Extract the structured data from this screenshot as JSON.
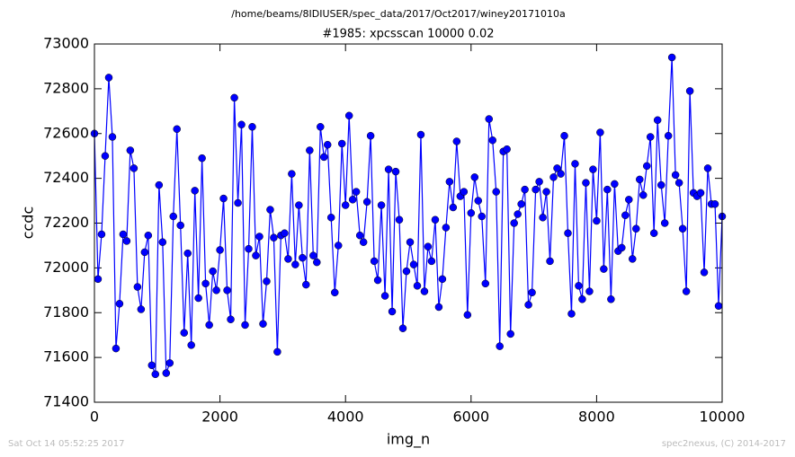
{
  "chart_data": {
    "type": "line",
    "suptitle": "/home/beams/8IDIUSER/spec_data/2017/Oct2017/winey20171010a",
    "title": "#1985: xpcsscan 10000 0.02",
    "x_label": "img_n",
    "y_label": "ccdc",
    "footer_left": "Sat Oct 14 05:52:25 2017",
    "footer_right": "spec2nexus, (C) 2014-2017",
    "xlim": [
      0,
      10000
    ],
    "xticks": [
      0,
      2000,
      4000,
      6000,
      8000,
      10000
    ],
    "ylim": [
      71400,
      73000
    ],
    "yticks": [
      71400,
      71600,
      71800,
      72000,
      72200,
      72400,
      72600,
      72800,
      73000
    ],
    "grid": false,
    "x": [
      0,
      57,
      114,
      171,
      229,
      286,
      343,
      400,
      457,
      514,
      571,
      629,
      686,
      743,
      800,
      857,
      914,
      971,
      1029,
      1086,
      1143,
      1200,
      1257,
      1314,
      1371,
      1429,
      1486,
      1543,
      1600,
      1657,
      1714,
      1771,
      1829,
      1886,
      1943,
      2000,
      2057,
      2114,
      2171,
      2229,
      2286,
      2343,
      2400,
      2457,
      2514,
      2571,
      2629,
      2686,
      2743,
      2800,
      2857,
      2914,
      2971,
      3029,
      3086,
      3143,
      3200,
      3257,
      3314,
      3371,
      3429,
      3486,
      3543,
      3600,
      3657,
      3714,
      3771,
      3829,
      3886,
      3943,
      4000,
      4057,
      4114,
      4171,
      4229,
      4286,
      4343,
      4400,
      4457,
      4514,
      4571,
      4629,
      4686,
      4743,
      4800,
      4857,
      4914,
      4971,
      5029,
      5086,
      5143,
      5200,
      5257,
      5314,
      5371,
      5429,
      5486,
      5543,
      5600,
      5657,
      5714,
      5771,
      5829,
      5886,
      5943,
      6000,
      6057,
      6114,
      6171,
      6229,
      6286,
      6343,
      6400,
      6457,
      6514,
      6571,
      6629,
      6686,
      6743,
      6800,
      6857,
      6914,
      6971,
      7029,
      7086,
      7143,
      7200,
      7257,
      7314,
      7371,
      7429,
      7486,
      7543,
      7600,
      7657,
      7714,
      7771,
      7829,
      7886,
      7943,
      8000,
      8057,
      8114,
      8171,
      8229,
      8286,
      8343,
      8400,
      8457,
      8514,
      8571,
      8629,
      8686,
      8743,
      8800,
      8857,
      8914,
      8971,
      9029,
      9086,
      9143,
      9200,
      9257,
      9314,
      9371,
      9429,
      9486,
      9543,
      9600,
      9657,
      9714,
      9771,
      9829,
      9886,
      9943,
      10000
    ],
    "series": [
      {
        "name": "ccdc",
        "color": "#0000ff",
        "values": [
          72600,
          71950,
          72150,
          72500,
          72850,
          72585,
          71640,
          71840,
          72150,
          72120,
          72525,
          72445,
          71915,
          71815,
          72070,
          72145,
          71565,
          71525,
          72370,
          72115,
          71530,
          71575,
          72230,
          72620,
          72190,
          71710,
          72065,
          71655,
          72345,
          71865,
          72490,
          71930,
          71745,
          71985,
          71900,
          72080,
          72310,
          71900,
          71770,
          72760,
          72290,
          72640,
          71745,
          72085,
          72630,
          72055,
          72140,
          71750,
          71940,
          72260,
          72135,
          71625,
          72145,
          72155,
          72040,
          72420,
          72015,
          72280,
          72045,
          71925,
          72525,
          72055,
          72025,
          72630,
          72495,
          72550,
          72225,
          71890,
          72100,
          72555,
          72280,
          72680,
          72305,
          72340,
          72145,
          72115,
          72295,
          72590,
          72030,
          71945,
          72280,
          71875,
          72440,
          71805,
          72430,
          72215,
          71730,
          71985,
          72115,
          72015,
          71920,
          72595,
          71895,
          72095,
          72030,
          72215,
          71825,
          71950,
          72180,
          72385,
          72270,
          72565,
          72320,
          72340,
          71790,
          72245,
          72405,
          72300,
          72230,
          71930,
          72665,
          72570,
          72340,
          71650,
          72520,
          72530,
          71705,
          72200,
          72240,
          72285,
          72350,
          71835,
          71890,
          72350,
          72385,
          72225,
          72340,
          72030,
          72405,
          72445,
          72420,
          72590,
          72155,
          71795,
          72465,
          71920,
          71860,
          72380,
          71895,
          72440,
          72210,
          72605,
          71995,
          72350,
          71860,
          72375,
          72075,
          72090,
          72235,
          72305,
          72040,
          72175,
          72395,
          72325,
          72455,
          72585,
          72155,
          72660,
          72370,
          72200,
          72590,
          72940,
          72415,
          72380,
          72175,
          71895,
          72790,
          72335,
          72320,
          72335,
          71980,
          72445,
          72285,
          72285,
          71830,
          72230
        ]
      }
    ]
  }
}
